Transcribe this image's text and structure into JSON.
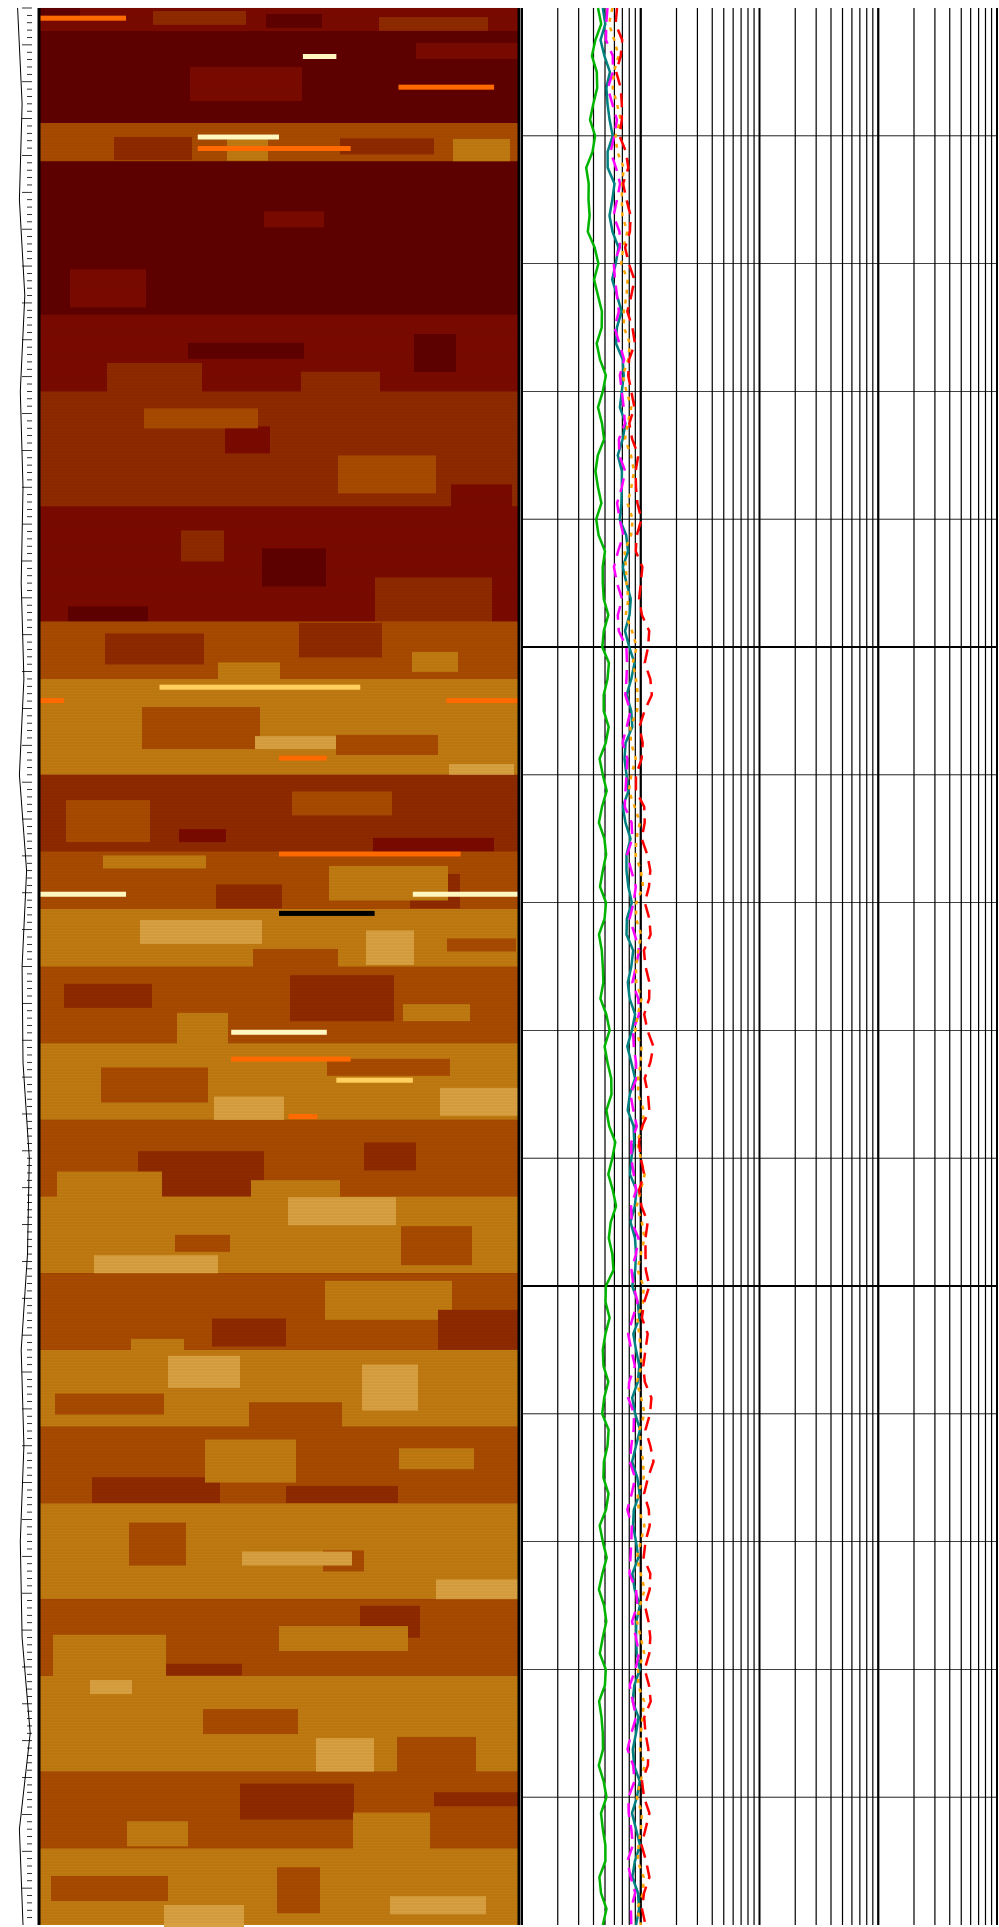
{
  "chart_data": [
    {
      "type": "line",
      "panel": "depth-track",
      "x": [
        0,
        0.05,
        0.1,
        0.15,
        0.2,
        0.25,
        0.3,
        0.35,
        0.4,
        0.45,
        0.5,
        0.55,
        0.6,
        0.65,
        0.7,
        0.75,
        0.8,
        0.85,
        0.9,
        0.95,
        1.0
      ],
      "values": [
        0.2,
        0.45,
        0.3,
        0.6,
        0.35,
        0.5,
        0.4,
        0.55,
        0.3,
        0.7,
        0.45,
        0.5,
        0.85,
        0.75,
        0.4,
        0.55,
        0.35,
        0.45,
        0.9,
        0.3,
        0.5
      ],
      "xlabel": "",
      "ylabel": ""
    },
    {
      "type": "heatmap",
      "panel": "image-log",
      "colors": [
        "#5f0000",
        "#7a0a00",
        "#8f2a00",
        "#a84a00",
        "#c07a10",
        "#d8a040",
        "#ff6a00",
        "#ffd060",
        "#fff6c0",
        "#000000"
      ],
      "bands": [
        {
          "y": 0.0,
          "c": 1
        },
        {
          "y": 0.012,
          "c": 0
        },
        {
          "y": 0.06,
          "c": 3
        },
        {
          "y": 0.08,
          "c": 0
        },
        {
          "y": 0.16,
          "c": 1
        },
        {
          "y": 0.2,
          "c": 2
        },
        {
          "y": 0.26,
          "c": 1
        },
        {
          "y": 0.32,
          "c": 3
        },
        {
          "y": 0.35,
          "c": 4
        },
        {
          "y": 0.4,
          "c": 2
        },
        {
          "y": 0.44,
          "c": 3
        },
        {
          "y": 0.47,
          "c": 4
        },
        {
          "y": 0.5,
          "c": 3
        },
        {
          "y": 0.54,
          "c": 4
        },
        {
          "y": 0.58,
          "c": 3
        },
        {
          "y": 0.62,
          "c": 4
        },
        {
          "y": 0.66,
          "c": 3
        },
        {
          "y": 0.7,
          "c": 4
        },
        {
          "y": 0.74,
          "c": 3
        },
        {
          "y": 0.78,
          "c": 4
        },
        {
          "y": 0.83,
          "c": 3
        },
        {
          "y": 0.87,
          "c": 4
        },
        {
          "y": 0.92,
          "c": 3
        },
        {
          "y": 0.96,
          "c": 4
        }
      ],
      "streaks": [
        {
          "y": 0.004,
          "x0": 0.0,
          "x1": 0.18,
          "c": 6
        },
        {
          "y": 0.024,
          "x0": 0.55,
          "x1": 0.62,
          "c": 8
        },
        {
          "y": 0.04,
          "x0": 0.75,
          "x1": 0.95,
          "c": 6
        },
        {
          "y": 0.066,
          "x0": 0.33,
          "x1": 0.5,
          "c": 8
        },
        {
          "y": 0.072,
          "x0": 0.33,
          "x1": 0.65,
          "c": 6
        },
        {
          "y": 0.353,
          "x0": 0.25,
          "x1": 0.67,
          "c": 7
        },
        {
          "y": 0.36,
          "x0": 0.0,
          "x1": 0.05,
          "c": 6
        },
        {
          "y": 0.36,
          "x0": 0.85,
          "x1": 1.0,
          "c": 6
        },
        {
          "y": 0.39,
          "x0": 0.5,
          "x1": 0.6,
          "c": 6
        },
        {
          "y": 0.44,
          "x0": 0.5,
          "x1": 0.88,
          "c": 6
        },
        {
          "y": 0.461,
          "x0": 0.0,
          "x1": 0.18,
          "c": 8
        },
        {
          "y": 0.461,
          "x0": 0.78,
          "x1": 1.0,
          "c": 8
        },
        {
          "y": 0.471,
          "x0": 0.5,
          "x1": 0.7,
          "c": 9
        },
        {
          "y": 0.533,
          "x0": 0.4,
          "x1": 0.6,
          "c": 8
        },
        {
          "y": 0.547,
          "x0": 0.4,
          "x1": 0.65,
          "c": 6
        },
        {
          "y": 0.558,
          "x0": 0.62,
          "x1": 0.78,
          "c": 7
        },
        {
          "y": 0.577,
          "x0": 0.52,
          "x1": 0.58,
          "c": 6
        }
      ]
    },
    {
      "type": "line",
      "panel": "log-grid-track",
      "x": [
        0,
        0.05,
        0.1,
        0.15,
        0.2,
        0.25,
        0.3,
        0.35,
        0.4,
        0.45,
        0.5,
        0.55,
        0.6,
        0.65,
        0.7,
        0.75,
        0.8,
        0.85,
        0.9,
        0.95,
        1.0
      ],
      "series": [
        {
          "color": "#00b400",
          "style": "solid",
          "values": [
            0.16,
            0.15,
            0.14,
            0.16,
            0.17,
            0.16,
            0.17,
            0.18,
            0.17,
            0.17,
            0.17,
            0.18,
            0.19,
            0.19,
            0.17,
            0.18,
            0.17,
            0.17,
            0.17,
            0.17,
            0.17
          ]
        },
        {
          "color": "#008080",
          "style": "solid",
          "values": [
            0.17,
            0.18,
            0.19,
            0.2,
            0.21,
            0.21,
            0.22,
            0.23,
            0.22,
            0.22,
            0.23,
            0.23,
            0.23,
            0.24,
            0.24,
            0.24,
            0.24,
            0.24,
            0.24,
            0.24,
            0.24
          ]
        },
        {
          "color": "#ff00ff",
          "style": "dashed",
          "values": [
            0.18,
            0.19,
            0.2,
            0.2,
            0.21,
            0.21,
            0.2,
            0.22,
            0.22,
            0.23,
            0.24,
            0.24,
            0.23,
            0.24,
            0.23,
            0.23,
            0.23,
            0.24,
            0.23,
            0.23,
            0.23
          ]
        },
        {
          "color": "#ffa500",
          "style": "dotted",
          "values": [
            0.19,
            0.2,
            0.21,
            0.22,
            0.22,
            0.23,
            0.22,
            0.24,
            0.23,
            0.25,
            0.24,
            0.25,
            0.25,
            0.25,
            0.25,
            0.25,
            0.25,
            0.25,
            0.25,
            0.25,
            0.25
          ]
        },
        {
          "color": "#ff0000",
          "style": "dashed",
          "values": [
            0.2,
            0.21,
            0.22,
            0.23,
            0.23,
            0.24,
            0.25,
            0.27,
            0.24,
            0.27,
            0.26,
            0.27,
            0.25,
            0.26,
            0.26,
            0.27,
            0.26,
            0.27,
            0.26,
            0.26,
            0.26
          ]
        }
      ],
      "xlabel": "",
      "ylabel": ""
    }
  ]
}
